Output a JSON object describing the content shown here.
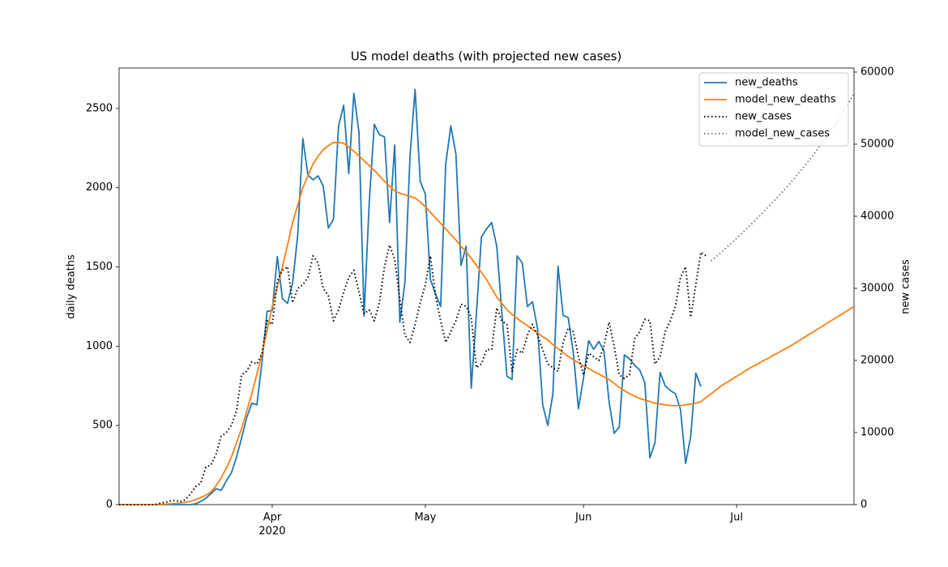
{
  "chart_data": {
    "type": "line",
    "title": "US model deaths (with projected new cases)",
    "ylabel": "daily deaths",
    "y2label": "new cases",
    "x_year_label": "2020",
    "x": [
      "2020-03-02",
      "2020-03-03",
      "2020-03-04",
      "2020-03-05",
      "2020-03-06",
      "2020-03-07",
      "2020-03-08",
      "2020-03-09",
      "2020-03-10",
      "2020-03-11",
      "2020-03-12",
      "2020-03-13",
      "2020-03-14",
      "2020-03-15",
      "2020-03-16",
      "2020-03-17",
      "2020-03-18",
      "2020-03-19",
      "2020-03-20",
      "2020-03-21",
      "2020-03-22",
      "2020-03-23",
      "2020-03-24",
      "2020-03-25",
      "2020-03-26",
      "2020-03-27",
      "2020-03-28",
      "2020-03-29",
      "2020-03-30",
      "2020-03-31",
      "2020-04-01",
      "2020-04-02",
      "2020-04-03",
      "2020-04-04",
      "2020-04-05",
      "2020-04-06",
      "2020-04-07",
      "2020-04-08",
      "2020-04-09",
      "2020-04-10",
      "2020-04-11",
      "2020-04-12",
      "2020-04-13",
      "2020-04-14",
      "2020-04-15",
      "2020-04-16",
      "2020-04-17",
      "2020-04-18",
      "2020-04-19",
      "2020-04-20",
      "2020-04-21",
      "2020-04-22",
      "2020-04-23",
      "2020-04-24",
      "2020-04-25",
      "2020-04-26",
      "2020-04-27",
      "2020-04-28",
      "2020-04-29",
      "2020-04-30",
      "2020-05-01",
      "2020-05-02",
      "2020-05-03",
      "2020-05-04",
      "2020-05-05",
      "2020-05-06",
      "2020-05-07",
      "2020-05-08",
      "2020-05-09",
      "2020-05-10",
      "2020-05-11",
      "2020-05-12",
      "2020-05-13",
      "2020-05-14",
      "2020-05-15",
      "2020-05-16",
      "2020-05-17",
      "2020-05-18",
      "2020-05-19",
      "2020-05-20",
      "2020-05-21",
      "2020-05-22",
      "2020-05-23",
      "2020-05-24",
      "2020-05-25",
      "2020-05-26",
      "2020-05-27",
      "2020-05-28",
      "2020-05-29",
      "2020-05-30",
      "2020-05-31",
      "2020-06-01",
      "2020-06-02",
      "2020-06-03",
      "2020-06-04",
      "2020-06-05",
      "2020-06-06",
      "2020-06-07",
      "2020-06-08",
      "2020-06-09",
      "2020-06-10",
      "2020-06-11",
      "2020-06-12",
      "2020-06-13",
      "2020-06-14",
      "2020-06-15",
      "2020-06-16",
      "2020-06-17",
      "2020-06-18",
      "2020-06-19",
      "2020-06-20",
      "2020-06-21",
      "2020-06-22",
      "2020-06-23",
      "2020-06-24",
      "2020-06-25",
      "2020-06-26",
      "2020-06-27",
      "2020-06-28",
      "2020-06-29",
      "2020-06-30",
      "2020-07-01",
      "2020-07-02",
      "2020-07-03",
      "2020-07-04",
      "2020-07-05",
      "2020-07-06",
      "2020-07-07",
      "2020-07-08",
      "2020-07-09",
      "2020-07-10",
      "2020-07-11",
      "2020-07-12",
      "2020-07-13",
      "2020-07-14",
      "2020-07-15",
      "2020-07-16",
      "2020-07-17",
      "2020-07-18",
      "2020-07-19",
      "2020-07-20",
      "2020-07-21",
      "2020-07-22",
      "2020-07-23",
      "2020-07-24"
    ],
    "series": [
      {
        "name": "new_deaths",
        "color": "#1f77b4",
        "linestyle": "solid",
        "axis": "y",
        "values": [
          0,
          0,
          0,
          0,
          0,
          0,
          0,
          0,
          0,
          0,
          0,
          0,
          0,
          0,
          0,
          5,
          20,
          40,
          70,
          100,
          90,
          150,
          200,
          300,
          420,
          550,
          640,
          630,
          900,
          1220,
          1225,
          1565,
          1300,
          1270,
          1400,
          1700,
          2310,
          2080,
          2050,
          2075,
          2010,
          1745,
          1800,
          2390,
          2520,
          2090,
          2595,
          2350,
          1190,
          1900,
          2400,
          2335,
          2320,
          1780,
          2270,
          1150,
          1400,
          2200,
          2620,
          2040,
          1960,
          1420,
          1330,
          1250,
          2150,
          2390,
          2210,
          1510,
          1630,
          735,
          1200,
          1690,
          1740,
          1780,
          1630,
          1210,
          810,
          790,
          1570,
          1525,
          1250,
          1280,
          1110,
          630,
          500,
          700,
          1505,
          1195,
          1180,
          960,
          605,
          800,
          1035,
          980,
          1030,
          970,
          650,
          450,
          490,
          945,
          920,
          880,
          850,
          770,
          295,
          390,
          835,
          750,
          720,
          700,
          600,
          260,
          430,
          830,
          745,
          null,
          null,
          null,
          null,
          null,
          null,
          null,
          null,
          null,
          null,
          null,
          null,
          null,
          null,
          null,
          null,
          null,
          null,
          null,
          null,
          null,
          null,
          null,
          null,
          null,
          null,
          null,
          null,
          null,
          null
        ]
      },
      {
        "name": "model_new_deaths",
        "color": "#ff7f0e",
        "linestyle": "solid",
        "axis": "y",
        "values": [
          0,
          0,
          0,
          0,
          0,
          0,
          0,
          0,
          2,
          3,
          5,
          7,
          10,
          15,
          22,
          32,
          45,
          60,
          80,
          120,
          170,
          230,
          300,
          390,
          480,
          590,
          700,
          825,
          950,
          1100,
          1250,
          1375,
          1500,
          1640,
          1780,
          1890,
          2000,
          2075,
          2150,
          2200,
          2240,
          2265,
          2285,
          2285,
          2280,
          2255,
          2230,
          2200,
          2170,
          2140,
          2110,
          2075,
          2040,
          2010,
          1980,
          1965,
          1955,
          1945,
          1935,
          1910,
          1880,
          1845,
          1810,
          1775,
          1740,
          1705,
          1670,
          1630,
          1595,
          1555,
          1510,
          1465,
          1420,
          1365,
          1310,
          1270,
          1230,
          1200,
          1175,
          1150,
          1130,
          1105,
          1085,
          1060,
          1040,
          1010,
          985,
          960,
          935,
          915,
          895,
          875,
          860,
          840,
          825,
          805,
          790,
          765,
          740,
          720,
          700,
          685,
          670,
          660,
          650,
          640,
          635,
          630,
          625,
          625,
          625,
          630,
          635,
          640,
          650,
          675,
          700,
          725,
          750,
          770,
          790,
          810,
          830,
          850,
          870,
          885,
          905,
          920,
          940,
          955,
          975,
          990,
          1010,
          1030,
          1050,
          1070,
          1090,
          1110,
          1130,
          1150,
          1170,
          1190,
          1210,
          1230,
          1250
        ]
      },
      {
        "name": "new_cases",
        "color": "#000000",
        "linestyle": "dotted",
        "axis": "y2",
        "values": [
          0,
          0,
          0,
          0,
          0,
          0,
          0,
          0,
          200,
          300,
          500,
          600,
          400,
          700,
          1500,
          2500,
          3000,
          5200,
          5500,
          7000,
          9500,
          10000,
          11000,
          13000,
          18000,
          18500,
          19800,
          19500,
          21000,
          25500,
          25000,
          31000,
          32500,
          33000,
          28000,
          30000,
          30500,
          31500,
          34500,
          33500,
          30000,
          29000,
          25500,
          27000,
          29500,
          31500,
          32500,
          29500,
          26500,
          27000,
          25500,
          28000,
          33000,
          36000,
          34000,
          28500,
          23500,
          22500,
          25000,
          28000,
          30500,
          34500,
          29000,
          25500,
          22500,
          24000,
          25500,
          27800,
          27500,
          26000,
          19000,
          19500,
          21500,
          21500,
          27300,
          25500,
          25000,
          18500,
          21500,
          21000,
          23500,
          25000,
          23500,
          21500,
          19500,
          19000,
          18500,
          22500,
          24500,
          24000,
          20500,
          18000,
          21000,
          20500,
          20000,
          22000,
          25300,
          22000,
          18000,
          17500,
          18000,
          23000,
          24000,
          25700,
          25500,
          19500,
          20500,
          24000,
          25500,
          27500,
          31500,
          33000,
          26000,
          30500,
          35000,
          34500,
          null,
          null,
          null,
          null,
          null,
          null,
          null,
          null,
          null,
          null,
          null,
          null,
          null,
          null,
          null,
          null,
          null,
          null,
          null,
          null,
          null,
          null,
          null,
          null,
          null,
          null,
          null,
          null,
          null
        ]
      },
      {
        "name": "model_new_cases",
        "color": "#808080",
        "linestyle": "dotted",
        "axis": "y2",
        "values": [
          null,
          null,
          null,
          null,
          null,
          null,
          null,
          null,
          null,
          null,
          null,
          null,
          null,
          null,
          null,
          null,
          null,
          null,
          null,
          null,
          null,
          null,
          null,
          null,
          null,
          null,
          null,
          null,
          null,
          null,
          null,
          null,
          null,
          null,
          null,
          null,
          null,
          null,
          null,
          null,
          null,
          null,
          null,
          null,
          null,
          null,
          null,
          null,
          null,
          null,
          null,
          null,
          null,
          null,
          null,
          null,
          null,
          null,
          null,
          null,
          null,
          null,
          null,
          null,
          null,
          null,
          null,
          null,
          null,
          null,
          null,
          null,
          null,
          null,
          null,
          null,
          null,
          null,
          null,
          null,
          null,
          null,
          null,
          null,
          null,
          null,
          null,
          null,
          null,
          null,
          null,
          null,
          null,
          null,
          null,
          null,
          null,
          null,
          null,
          null,
          null,
          null,
          null,
          null,
          null,
          null,
          null,
          null,
          null,
          null,
          null,
          null,
          null,
          null,
          null,
          null,
          33800,
          34400,
          35000,
          35650,
          36300,
          36950,
          37600,
          38300,
          39000,
          39700,
          40400,
          41150,
          41900,
          42650,
          43400,
          44200,
          45000,
          45850,
          46700,
          47600,
          48500,
          49450,
          50400,
          51400,
          52400,
          53500,
          54600,
          55800,
          57000
        ]
      }
    ],
    "xlim": [
      "2020-03-02",
      "2020-07-24"
    ],
    "xticks": [
      {
        "value": "2020-04-01",
        "label": "Apr"
      },
      {
        "value": "2020-05-01",
        "label": "May"
      },
      {
        "value": "2020-06-01",
        "label": "Jun"
      },
      {
        "value": "2020-07-01",
        "label": "Jul"
      }
    ],
    "ylim": [
      0,
      2755
    ],
    "yticks": [
      0,
      500,
      1000,
      1500,
      2000,
      2500
    ],
    "y2lim": [
      0,
      60560
    ],
    "y2ticks": [
      0,
      10000,
      20000,
      30000,
      40000,
      50000,
      60000
    ],
    "grid": false,
    "legend": "upper right"
  }
}
